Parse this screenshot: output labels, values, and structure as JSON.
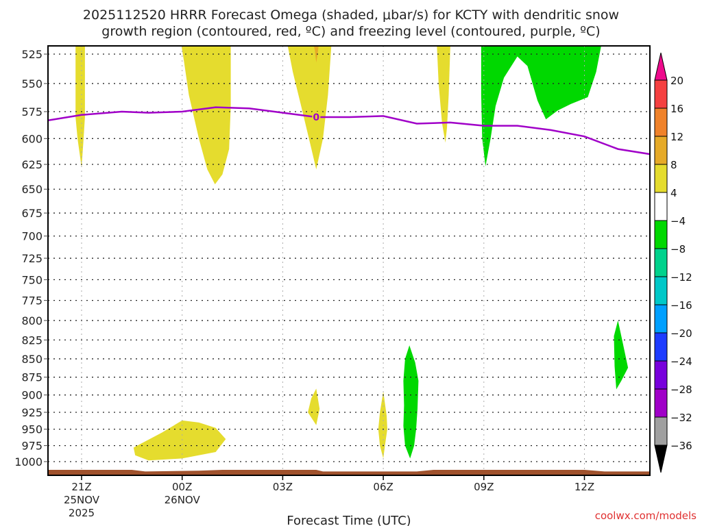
{
  "chart_data": {
    "type": "heatmap",
    "title_lines": [
      "2025112520 HRRR Forecast Omega (shaded, μbar/s) for KCTY with dendritic snow",
      "growth region (contoured, red, ºC) and freezing level (contoured, purple, ºC)"
    ],
    "xlabel": "Forecast Time (UTC)",
    "ylabel": "",
    "credit": "coolwx.com/models",
    "x_range_hours": [
      -1,
      16.96
    ],
    "x_ticks": [
      {
        "hour": 0,
        "lines": [
          "21Z",
          "25NOV",
          "2025"
        ]
      },
      {
        "hour": 3,
        "lines": [
          "00Z",
          "26NOV"
        ]
      },
      {
        "hour": 6,
        "lines": [
          "03Z"
        ]
      },
      {
        "hour": 9,
        "lines": [
          "06Z"
        ]
      },
      {
        "hour": 12,
        "lines": [
          "09Z"
        ]
      },
      {
        "hour": 15,
        "lines": [
          "12Z"
        ]
      }
    ],
    "y_axis": {
      "scale": "log-pressure",
      "unit": "hPa",
      "range": [
        515,
        1040
      ],
      "inverted": true
    },
    "y_ticks": [
      "525",
      "550",
      "575",
      "600",
      "625",
      "650",
      "675",
      "700",
      "725",
      "750",
      "775",
      "800",
      "825",
      "850",
      "875",
      "900",
      "925",
      "950",
      "975",
      "1000"
    ],
    "grid": true,
    "colorbar": {
      "position": "right",
      "ticks": [
        "20",
        "16",
        "12",
        "8",
        "4",
        "−4",
        "−8",
        "−12",
        "−16",
        "−20",
        "−24",
        "−28",
        "−32",
        "−36"
      ],
      "bins": [
        {
          "range": ">20",
          "color": "#ee0a8c"
        },
        {
          "range": "16 to 20",
          "color": "#f54040"
        },
        {
          "range": "12 to 16",
          "color": "#f0822a"
        },
        {
          "range": "8 to 12",
          "color": "#e6aa28"
        },
        {
          "range": "4 to 8",
          "color": "#e5dc2e"
        },
        {
          "range": "-4 to 4",
          "color": "#ffffff"
        },
        {
          "range": "-8 to -4",
          "color": "#00d800"
        },
        {
          "range": "-12 to -8",
          "color": "#00d28c"
        },
        {
          "range": "-16 to -12",
          "color": "#00c8c8"
        },
        {
          "range": "-20 to -16",
          "color": "#00a0ff"
        },
        {
          "range": "-24 to -20",
          "color": "#1e3cff"
        },
        {
          "range": "-28 to -24",
          "color": "#7800dc"
        },
        {
          "range": "-32 to -28",
          "color": "#a000c8"
        },
        {
          "range": "-36 to -32",
          "color": "#a0a0a0"
        },
        {
          "range": "<-36",
          "color": "#000000"
        }
      ]
    },
    "omega_regions": [
      {
        "name": "omega-yellow-21z-upper",
        "bin": "4 to 8",
        "color": "#e5dc2e",
        "points": [
          [
            -0.18,
            515
          ],
          [
            0.1,
            515
          ],
          [
            0.1,
            580
          ],
          [
            0.05,
            605
          ],
          [
            0.0,
            628
          ],
          [
            -0.12,
            600
          ],
          [
            -0.18,
            580
          ]
        ]
      },
      {
        "name": "omega-yellow-00z-upper",
        "bin": "4 to 8",
        "color": "#e5dc2e",
        "points": [
          [
            2.98,
            515
          ],
          [
            4.45,
            515
          ],
          [
            4.45,
            570
          ],
          [
            4.4,
            610
          ],
          [
            4.2,
            635
          ],
          [
            3.98,
            645
          ],
          [
            3.75,
            630
          ],
          [
            3.5,
            600
          ],
          [
            3.2,
            560
          ],
          [
            3.05,
            530
          ]
        ]
      },
      {
        "name": "omega-yellow-03z-upper",
        "bin": "4 to 8",
        "color": "#e5dc2e",
        "points": [
          [
            6.15,
            515
          ],
          [
            7.45,
            515
          ],
          [
            7.35,
            560
          ],
          [
            7.2,
            600
          ],
          [
            7.0,
            630
          ],
          [
            6.82,
            605
          ],
          [
            6.55,
            570
          ],
          [
            6.3,
            540
          ]
        ]
      },
      {
        "name": "omega-orange-03z-tip",
        "bin": "8 to 12",
        "color": "#e6aa28",
        "points": [
          [
            6.93,
            515
          ],
          [
            7.07,
            515
          ],
          [
            7.04,
            525
          ],
          [
            7.0,
            532
          ],
          [
            6.96,
            522
          ]
        ]
      },
      {
        "name": "omega-yellow-08z-upper",
        "bin": "4 to 8",
        "color": "#e5dc2e",
        "points": [
          [
            10.6,
            515
          ],
          [
            11.0,
            515
          ],
          [
            10.95,
            560
          ],
          [
            10.9,
            590
          ],
          [
            10.85,
            604
          ],
          [
            10.75,
            585
          ],
          [
            10.65,
            550
          ]
        ]
      },
      {
        "name": "omega-green-09z-upper",
        "bin": "-8 to -4",
        "color": "#00d800",
        "points": [
          [
            11.92,
            515
          ],
          [
            15.5,
            515
          ],
          [
            15.35,
            540
          ],
          [
            15.1,
            562
          ],
          [
            14.6,
            568
          ],
          [
            14.2,
            574
          ],
          [
            13.85,
            582
          ],
          [
            13.6,
            565
          ],
          [
            13.3,
            535
          ],
          [
            13.0,
            527
          ],
          [
            12.6,
            545
          ],
          [
            12.35,
            570
          ],
          [
            12.2,
            600
          ],
          [
            12.05,
            627
          ],
          [
            11.95,
            600
          ],
          [
            11.92,
            560
          ]
        ]
      },
      {
        "name": "omega-green-13z-lower",
        "bin": "-8 to -4",
        "color": "#00d800",
        "points": [
          [
            16.0,
            800
          ],
          [
            16.15,
            830
          ],
          [
            16.3,
            862
          ],
          [
            16.1,
            880
          ],
          [
            15.95,
            892
          ],
          [
            15.9,
            860
          ],
          [
            15.88,
            820
          ]
        ]
      },
      {
        "name": "omega-green-07z-lower",
        "bin": "-8 to -4",
        "color": "#00d800",
        "points": [
          [
            9.78,
            832
          ],
          [
            9.95,
            855
          ],
          [
            10.05,
            880
          ],
          [
            10.02,
            920
          ],
          [
            9.98,
            950
          ],
          [
            9.92,
            975
          ],
          [
            9.8,
            995
          ],
          [
            9.65,
            975
          ],
          [
            9.6,
            945
          ],
          [
            9.62,
            915
          ],
          [
            9.6,
            880
          ],
          [
            9.65,
            850
          ]
        ]
      },
      {
        "name": "omega-yellow-06z-lower",
        "bin": "4 to 8",
        "color": "#e5dc2e",
        "points": [
          [
            9.0,
            895
          ],
          [
            9.1,
            930
          ],
          [
            9.12,
            950
          ],
          [
            9.05,
            975
          ],
          [
            9.0,
            995
          ],
          [
            8.9,
            975
          ],
          [
            8.85,
            950
          ],
          [
            8.9,
            925
          ]
        ]
      },
      {
        "name": "omega-yellow-04z-lower",
        "bin": "4 to 8",
        "color": "#e5dc2e",
        "points": [
          [
            7.0,
            891
          ],
          [
            7.1,
            920
          ],
          [
            7.0,
            944
          ],
          [
            6.75,
            925
          ],
          [
            6.85,
            905
          ]
        ]
      },
      {
        "name": "omega-yellow-23z-lower",
        "bin": "4 to 8",
        "color": "#e5dc2e",
        "points": [
          [
            1.55,
            978
          ],
          [
            2.4,
            955
          ],
          [
            3.0,
            937
          ],
          [
            3.5,
            940
          ],
          [
            4.0,
            948
          ],
          [
            4.3,
            965
          ],
          [
            4.0,
            985
          ],
          [
            3.0,
            995
          ],
          [
            2.0,
            998
          ],
          [
            1.6,
            990
          ]
        ]
      }
    ],
    "freezing_level": {
      "label": "0",
      "label_hour": 7.0,
      "color": "#a000c8",
      "points": [
        [
          -1,
          583
        ],
        [
          0,
          578
        ],
        [
          1.2,
          575
        ],
        [
          2.0,
          576
        ],
        [
          3.0,
          575
        ],
        [
          4.0,
          571
        ],
        [
          5.0,
          572
        ],
        [
          6.0,
          576
        ],
        [
          7.0,
          580
        ],
        [
          8.0,
          580
        ],
        [
          9.0,
          579
        ],
        [
          10.0,
          586
        ],
        [
          11.0,
          585
        ],
        [
          12.0,
          588
        ],
        [
          13.0,
          588
        ],
        [
          14.0,
          592
        ],
        [
          15.0,
          598
        ],
        [
          16.0,
          610
        ],
        [
          16.96,
          615
        ]
      ]
    },
    "terrain": {
      "color": "#a0522d",
      "top_hPa": 1028
    }
  }
}
